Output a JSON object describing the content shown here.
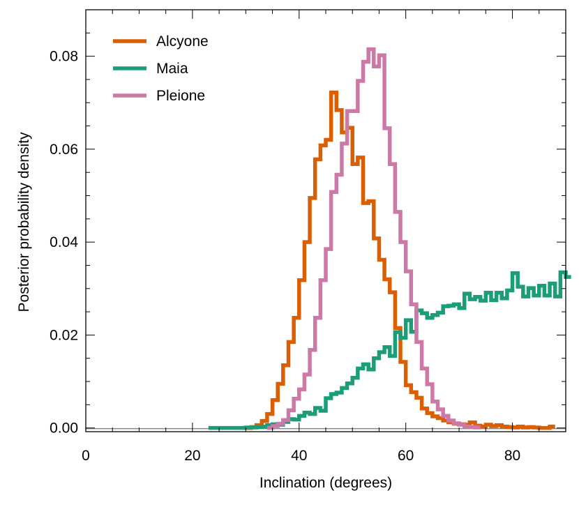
{
  "chart_data": {
    "type": "line",
    "step": true,
    "xlabel": "Inclination (degrees)",
    "ylabel": "Posterior probability density",
    "xlim": [
      0,
      90
    ],
    "ylim": [
      -0.0008,
      0.09
    ],
    "xticks": [
      0,
      20,
      40,
      60,
      80
    ],
    "xtick_labels": [
      "0",
      "20",
      "40",
      "60",
      "80"
    ],
    "yticks": [
      0.0,
      0.02,
      0.04,
      0.06,
      0.08
    ],
    "ytick_labels": [
      "0.00",
      "0.02",
      "0.04",
      "0.06",
      "0.08"
    ],
    "grid": false,
    "legend_position": "top-left",
    "bin_width": 1,
    "series": [
      {
        "name": "Alcyone",
        "color": "#d95f02",
        "x_start": 30,
        "values": [
          0.0,
          0.0002,
          0.0006,
          0.0015,
          0.003,
          0.006,
          0.0095,
          0.0135,
          0.0185,
          0.0237,
          0.0318,
          0.04,
          0.0495,
          0.0578,
          0.0608,
          0.062,
          0.0722,
          0.0684,
          0.0636,
          0.0646,
          0.0568,
          0.0582,
          0.0484,
          0.0488,
          0.0408,
          0.0362,
          0.032,
          0.0292,
          0.0215,
          0.0142,
          0.0092,
          0.0077,
          0.0065,
          0.0042,
          0.0032,
          0.0025,
          0.0021,
          0.0016,
          0.0012,
          0.0009,
          0.0008,
          0.0007,
          0.0012,
          0.0005,
          0.0003,
          0.0007,
          0.0004,
          0.0006,
          0.0003,
          0.0002,
          0.0001,
          0.0003,
          0.0001,
          0.0002,
          0.0001,
          0.0,
          0.0,
          0.0003
        ]
      },
      {
        "name": "Maia",
        "color": "#1b9e77",
        "x_start": 23,
        "values": [
          0.0,
          0.0,
          0.0,
          0.0,
          0.0,
          0.0,
          0.0,
          0.0001,
          0.0001,
          0.0002,
          0.0003,
          0.0006,
          0.0008,
          0.0007,
          0.0013,
          0.0019,
          0.0018,
          0.0026,
          0.0033,
          0.003,
          0.0043,
          0.0037,
          0.0064,
          0.0073,
          0.0076,
          0.0086,
          0.0096,
          0.0108,
          0.0128,
          0.0137,
          0.0126,
          0.015,
          0.0163,
          0.0174,
          0.0155,
          0.0206,
          0.0194,
          0.0232,
          0.0207,
          0.0253,
          0.0247,
          0.0237,
          0.0243,
          0.0248,
          0.0262,
          0.0263,
          0.0266,
          0.0258,
          0.0289,
          0.0277,
          0.0282,
          0.0274,
          0.0291,
          0.0275,
          0.0291,
          0.0279,
          0.0296,
          0.0333,
          0.0304,
          0.0283,
          0.0301,
          0.0285,
          0.0306,
          0.0285,
          0.0311,
          0.0283,
          0.0335,
          0.0325
        ]
      },
      {
        "name": "Pleione",
        "color": "#cc79a7",
        "x_start": 34,
        "values": [
          0.0,
          0.0004,
          0.0009,
          0.0017,
          0.0038,
          0.0063,
          0.0083,
          0.0115,
          0.0168,
          0.0237,
          0.0318,
          0.0385,
          0.0508,
          0.0545,
          0.0612,
          0.0682,
          0.0682,
          0.0747,
          0.0788,
          0.0815,
          0.0778,
          0.0802,
          0.0645,
          0.0568,
          0.0465,
          0.04,
          0.0337,
          0.0266,
          0.0185,
          0.0128,
          0.0094,
          0.0057,
          0.004,
          0.0026,
          0.0016,
          0.001,
          0.0007,
          0.0003,
          0.0002,
          0.0001
        ]
      }
    ]
  }
}
